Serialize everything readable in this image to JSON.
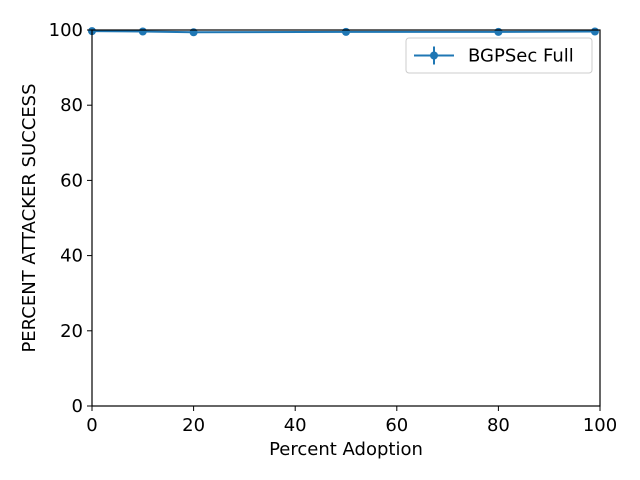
{
  "chart_data": {
    "type": "line",
    "title": "",
    "xlabel": "Percent Adoption",
    "ylabel": "PERCENT ATTACKER SUCCESS",
    "xlim": [
      0,
      100
    ],
    "ylim": [
      0,
      100
    ],
    "xticks": [
      0,
      20,
      40,
      60,
      80,
      100
    ],
    "yticks": [
      0,
      20,
      40,
      60,
      80,
      100
    ],
    "grid": false,
    "legend_position": "top-right",
    "series": [
      {
        "name": "BGPSec Full",
        "color": "#1f77b4",
        "marker": "circle",
        "error_bars": true,
        "x": [
          0,
          10,
          20,
          50,
          80,
          99
        ],
        "y": [
          99.7,
          99.6,
          99.4,
          99.5,
          99.5,
          99.6
        ]
      }
    ]
  }
}
